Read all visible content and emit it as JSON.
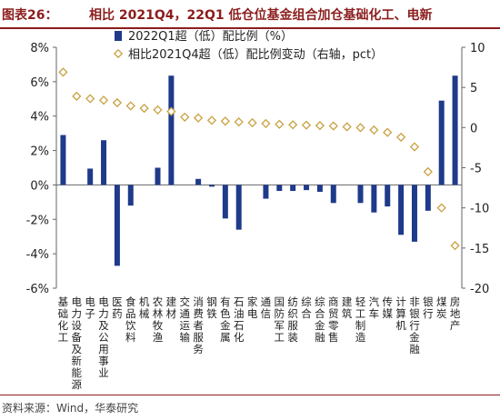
{
  "header": {
    "label": "图表26：",
    "title": "相比 2021Q4，22Q1 低仓位基金组合加仓基础化工、电新"
  },
  "footer": {
    "source": "资料来源：Wind，华泰研究"
  },
  "colors": {
    "bar": "#1f3a8a",
    "marker_edge": "#c9a040",
    "marker_fill": "#ffffff",
    "title": "#8c1d1d"
  },
  "chart_data": {
    "type": "bar",
    "categories": [
      "基础化工",
      "电力设备及新能源",
      "电子",
      "电力及公用事业",
      "医药",
      "食品饮料",
      "机械",
      "农林牧渔",
      "建材",
      "交通运输",
      "消费者服务",
      "钢铁",
      "有色金属",
      "石油石化",
      "家电",
      "通信",
      "国防军工",
      "纺织服装",
      "综合",
      "综合金融",
      "商贸零售",
      "建筑",
      "轻工制造",
      "汽车",
      "传媒",
      "计算机",
      "非银行金融",
      "银行",
      "煤炭",
      "房地产"
    ],
    "series": [
      {
        "name": "2022Q1超（低）配比例（%）",
        "kind": "bar",
        "axis": "left",
        "values": [
          2.9,
          0.0,
          0.95,
          2.6,
          -4.7,
          -1.2,
          0.0,
          1.0,
          6.35,
          0.0,
          0.35,
          -0.1,
          -1.95,
          -2.6,
          0.0,
          -0.8,
          -0.35,
          -0.35,
          -0.3,
          -0.4,
          -1.05,
          0.0,
          -1.05,
          -1.6,
          -1.25,
          -2.9,
          -3.3,
          -1.5,
          4.9,
          6.35
        ]
      },
      {
        "name": "相比2021Q4超（低）配比例变动（右轴，pct）",
        "kind": "scatter",
        "axis": "right",
        "values": [
          6.9,
          3.9,
          3.6,
          3.4,
          3.1,
          2.7,
          2.4,
          2.2,
          2.0,
          1.3,
          1.2,
          0.9,
          0.8,
          0.7,
          0.6,
          0.5,
          0.4,
          0.35,
          0.3,
          0.25,
          0.2,
          0.1,
          0.0,
          -0.3,
          -0.6,
          -1.2,
          -2.4,
          -5.5,
          -10.0,
          -14.7
        ]
      }
    ],
    "y_left": {
      "min": -6,
      "max": 8,
      "ticks": [
        -6,
        -4,
        -2,
        0,
        2,
        4,
        6,
        8
      ],
      "tick_labels": [
        "-6%",
        "-4%",
        "-2%",
        "0%",
        "2%",
        "4%",
        "6%",
        "8%"
      ]
    },
    "y_right": {
      "min": -20,
      "max": 10,
      "ticks": [
        -20,
        -15,
        -10,
        -5,
        0,
        5,
        10
      ],
      "tick_labels": [
        "-20",
        "-15",
        "-10",
        "-5",
        "0",
        "5",
        "10"
      ]
    },
    "legend": "top",
    "grid": false
  }
}
